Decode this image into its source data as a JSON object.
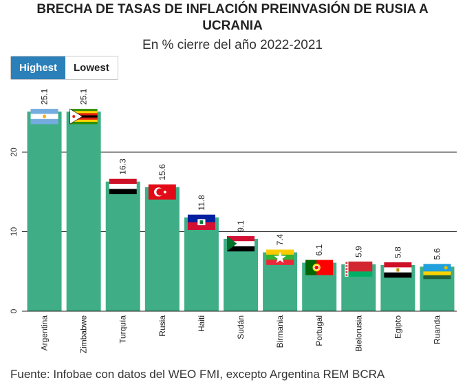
{
  "title_line1": "BRECHA DE TASAS DE INFLACIÓN PREINVASIÓN DE RUSIA A",
  "title_line2": "UCRANIA",
  "subtitle": "En % cierre del año 2022-2021",
  "toggle": {
    "highest_label": "Highest",
    "lowest_label": "Lowest"
  },
  "source": "Fuente: Infobae con datos del WEO FMI, excepto Argentina REM BCRA",
  "colors": {
    "bar": "#3fae87",
    "accent": "#2b80b9"
  },
  "chart_data": {
    "type": "bar",
    "title": "BRECHA DE TASAS DE INFLACIÓN PREINVASIÓN DE RUSIA A UCRANIA",
    "subtitle": "En % cierre del año 2022-2021",
    "categories": [
      "Argentina",
      "Zimbabwe",
      "Turquía",
      "Rusia",
      "Haiti",
      "Sudán",
      "Birmania",
      "Portugal",
      "Bielorusia",
      "Egipto",
      "Ruanda"
    ],
    "values": [
      25.1,
      25.1,
      16.3,
      15.6,
      11.8,
      9.1,
      7.4,
      6.1,
      5.9,
      5.8,
      5.6
    ],
    "value_labels": [
      "25.1",
      "25.1",
      "16.3",
      "15.6",
      "11.8",
      "9.1",
      "7.4",
      "6.1",
      "5.9",
      "5.8",
      "5.6"
    ],
    "flags": [
      "argentina-flag-icon",
      "zimbabwe-flag-icon",
      "yemen-style-flag-icon",
      "turkey-flag-icon",
      "haiti-flag-icon",
      "sudan-flag-icon",
      "myanmar-flag-icon",
      "portugal-flag-icon",
      "belarus-flag-icon",
      "egypt-flag-icon",
      "rwanda-flag-icon"
    ],
    "ylim": [
      0,
      28
    ],
    "yticks": [
      0,
      10,
      20
    ],
    "ytick_labels": [
      "0",
      "10",
      "20"
    ],
    "grid": true
  }
}
